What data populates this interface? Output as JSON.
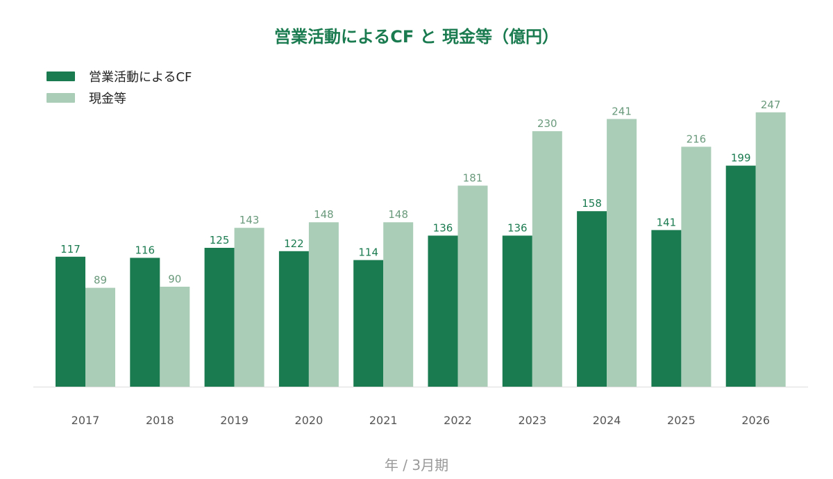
{
  "colors": {
    "primary": "#1b7b50",
    "secondary": "#a9cdb7",
    "title": "#1b7b50",
    "axis": "#dddddd",
    "secondary_label": "#6a9a7c"
  },
  "chart_data": {
    "type": "bar",
    "title": "営業活動によるCF と 現金等（億円）",
    "xlabel": "年 / 3月期",
    "ylabel": "",
    "ylim": [
      0,
      260
    ],
    "grid": false,
    "legend_position": "top-left",
    "categories": [
      "2017",
      "2018",
      "2019",
      "2020",
      "2021",
      "2022",
      "2023",
      "2024",
      "2025",
      "2026"
    ],
    "series": [
      {
        "name": "営業活動によるCF",
        "values": [
          117,
          116,
          125,
          122,
          114,
          136,
          136,
          158,
          141,
          199
        ]
      },
      {
        "name": "現金等",
        "values": [
          89,
          90,
          143,
          148,
          148,
          181,
          230,
          241,
          216,
          247
        ]
      }
    ]
  }
}
